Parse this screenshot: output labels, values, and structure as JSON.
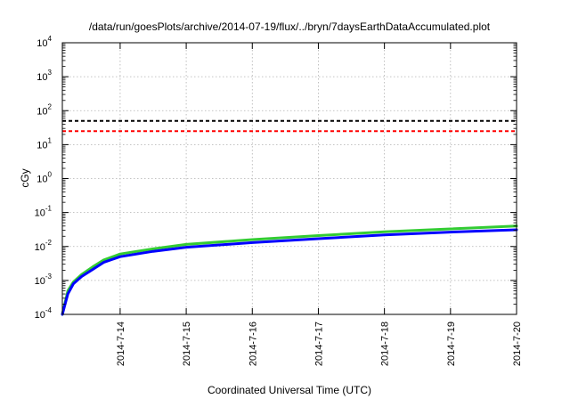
{
  "chart_data": {
    "type": "line",
    "title": "/data/run/goesPlots/archive/2014-07-19/flux/../bryn/7daysEarthDataAccumulated.plot",
    "xlabel": "Coordinated Universal Time (UTC)",
    "ylabel": "cGy",
    "x_ticks": [
      "2014-7-14",
      "2014-7-15",
      "2014-7-16",
      "2014-7-17",
      "2014-7-18",
      "2014-7-19",
      "2014-7-20"
    ],
    "y_ticks": [
      {
        "base": "10",
        "exp": "-4"
      },
      {
        "base": "10",
        "exp": "-3"
      },
      {
        "base": "10",
        "exp": "-2"
      },
      {
        "base": "10",
        "exp": "-1"
      },
      {
        "base": "10",
        "exp": "0"
      },
      {
        "base": "10",
        "exp": "1"
      },
      {
        "base": "10",
        "exp": "2"
      },
      {
        "base": "10",
        "exp": "3"
      },
      {
        "base": "10",
        "exp": "4"
      }
    ],
    "xlim": [
      "2014-07-13T03:00",
      "2014-07-20T00:00"
    ],
    "ylim": [
      0.0001,
      10000
    ],
    "yscale": "log",
    "grid": true,
    "reference_lines": [
      {
        "y": 50,
        "color": "#000000",
        "style": "dashed"
      },
      {
        "y": 25,
        "color": "#ff0000",
        "style": "dashed"
      }
    ],
    "series": [
      {
        "color": "#33cc33",
        "x": [
          "2014-07-13T03:00",
          "2014-07-13T05:00",
          "2014-07-13T07:00",
          "2014-07-13T10:00",
          "2014-07-13T14:00",
          "2014-07-13T18:00",
          "2014-07-14T00:00",
          "2014-07-14T12:00",
          "2014-07-15T00:00",
          "2014-07-16T00:00",
          "2014-07-17T00:00",
          "2014-07-18T00:00",
          "2014-07-19T00:00",
          "2014-07-20T00:00"
        ],
        "y": [
          0.0001,
          0.0005,
          0.0009,
          0.0015,
          0.0025,
          0.004,
          0.006,
          0.0085,
          0.0115,
          0.016,
          0.021,
          0.027,
          0.033,
          0.04
        ]
      },
      {
        "color": "#0000ff",
        "x": [
          "2014-07-13T03:00",
          "2014-07-13T05:00",
          "2014-07-13T07:00",
          "2014-07-13T10:00",
          "2014-07-13T14:00",
          "2014-07-13T18:00",
          "2014-07-14T00:00",
          "2014-07-14T12:00",
          "2014-07-15T00:00",
          "2014-07-16T00:00",
          "2014-07-17T00:00",
          "2014-07-18T00:00",
          "2014-07-19T00:00",
          "2014-07-20T00:00"
        ],
        "y": [
          0.0001,
          0.0004,
          0.0008,
          0.0013,
          0.0021,
          0.0034,
          0.005,
          0.0072,
          0.0095,
          0.013,
          0.017,
          0.022,
          0.0265,
          0.031
        ]
      }
    ]
  }
}
